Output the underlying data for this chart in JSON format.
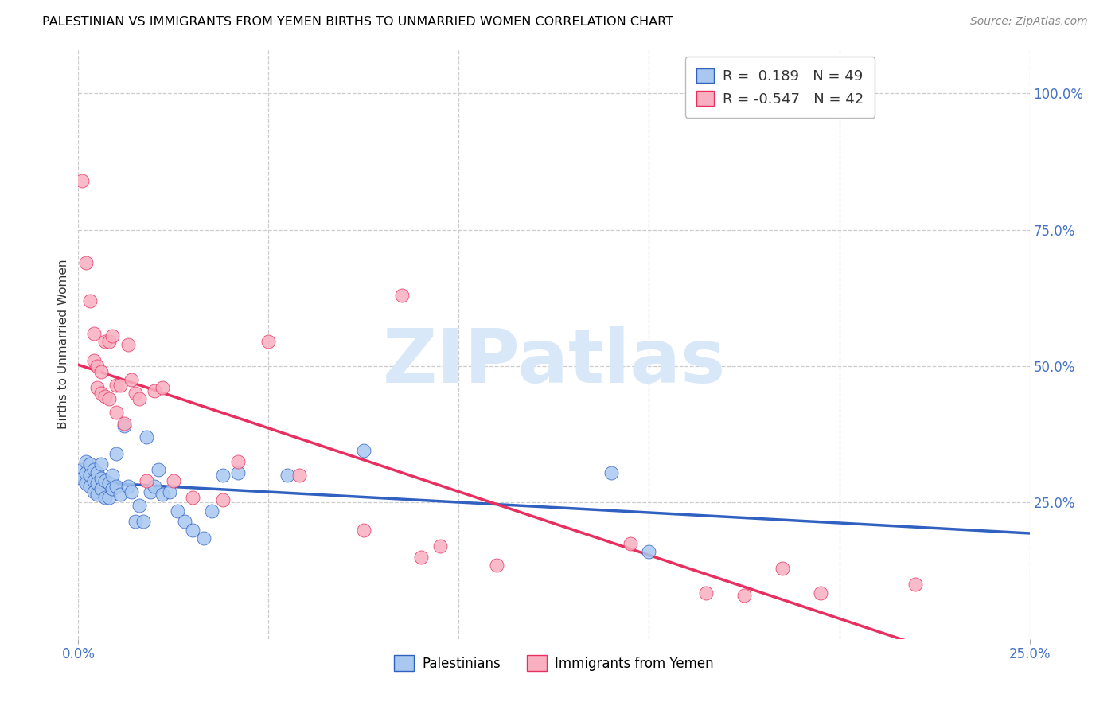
{
  "title": "PALESTINIAN VS IMMIGRANTS FROM YEMEN BIRTHS TO UNMARRIED WOMEN CORRELATION CHART",
  "source": "Source: ZipAtlas.com",
  "ylabel": "Births to Unmarried Women",
  "color_palestinians": "#a8c8f0",
  "color_yemen": "#f8b0c0",
  "color_trend_blue": "#3060c0",
  "color_trend_pink": "#e83060",
  "watermark_color": "#d8e8f8",
  "blue_x": [
    0.001,
    0.001,
    0.002,
    0.002,
    0.002,
    0.003,
    0.003,
    0.003,
    0.004,
    0.004,
    0.004,
    0.005,
    0.005,
    0.005,
    0.006,
    0.006,
    0.006,
    0.007,
    0.007,
    0.008,
    0.008,
    0.009,
    0.009,
    0.01,
    0.01,
    0.011,
    0.012,
    0.013,
    0.014,
    0.015,
    0.016,
    0.017,
    0.018,
    0.019,
    0.02,
    0.021,
    0.022,
    0.024,
    0.026,
    0.028,
    0.03,
    0.033,
    0.035,
    0.038,
    0.042,
    0.055,
    0.075,
    0.14,
    0.15
  ],
  "blue_y": [
    0.31,
    0.295,
    0.325,
    0.305,
    0.285,
    0.32,
    0.3,
    0.28,
    0.31,
    0.29,
    0.27,
    0.305,
    0.285,
    0.265,
    0.32,
    0.295,
    0.275,
    0.29,
    0.26,
    0.285,
    0.26,
    0.3,
    0.275,
    0.34,
    0.28,
    0.265,
    0.39,
    0.28,
    0.27,
    0.215,
    0.245,
    0.215,
    0.37,
    0.27,
    0.28,
    0.31,
    0.265,
    0.27,
    0.235,
    0.215,
    0.2,
    0.185,
    0.235,
    0.3,
    0.305,
    0.3,
    0.345,
    0.305,
    0.16
  ],
  "pink_x": [
    0.001,
    0.002,
    0.003,
    0.004,
    0.004,
    0.005,
    0.005,
    0.006,
    0.006,
    0.007,
    0.007,
    0.008,
    0.008,
    0.009,
    0.01,
    0.01,
    0.011,
    0.012,
    0.013,
    0.014,
    0.015,
    0.016,
    0.018,
    0.02,
    0.022,
    0.025,
    0.03,
    0.038,
    0.042,
    0.05,
    0.058,
    0.075,
    0.09,
    0.11,
    0.145,
    0.175,
    0.185,
    0.195,
    0.22,
    0.085,
    0.095,
    0.165
  ],
  "pink_y": [
    0.84,
    0.69,
    0.62,
    0.56,
    0.51,
    0.5,
    0.46,
    0.45,
    0.49,
    0.445,
    0.545,
    0.44,
    0.545,
    0.555,
    0.465,
    0.415,
    0.465,
    0.395,
    0.54,
    0.475,
    0.45,
    0.44,
    0.29,
    0.455,
    0.46,
    0.29,
    0.26,
    0.255,
    0.325,
    0.545,
    0.3,
    0.2,
    0.15,
    0.135,
    0.175,
    0.08,
    0.13,
    0.085,
    0.1,
    0.63,
    0.17,
    0.085
  ],
  "legend_line1": "R =  0.189   N = 49",
  "legend_line2": "R = -0.547   N = 42"
}
